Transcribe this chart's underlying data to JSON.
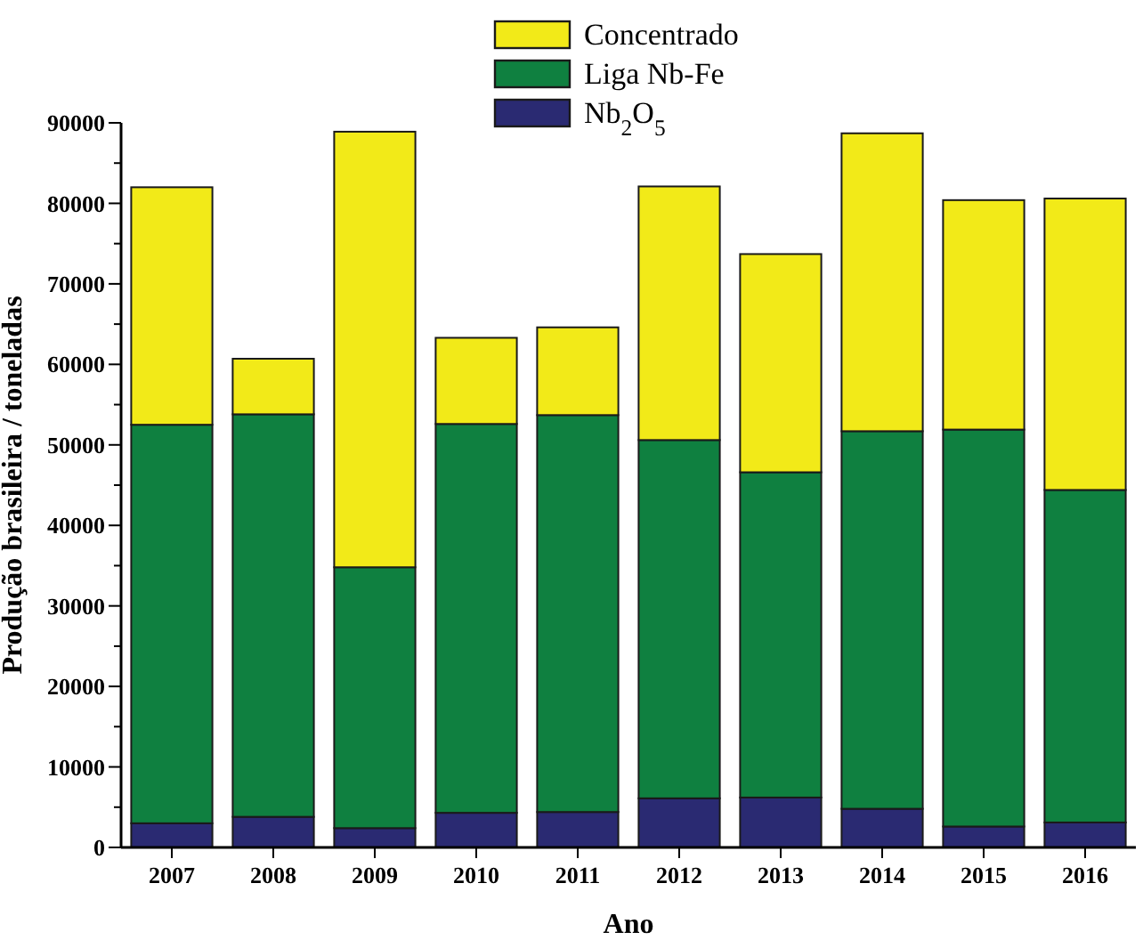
{
  "chart_data": {
    "type": "bar",
    "stacked": true,
    "xlabel": "Ano",
    "ylabel": "Produção brasileira / toneladas",
    "categories": [
      "2007",
      "2008",
      "2009",
      "2010",
      "2011",
      "2012",
      "2013",
      "2014",
      "2015",
      "2016"
    ],
    "series": [
      {
        "name": "Nb$_{2}$O$_{5}$",
        "color": "#2a2a72",
        "values": [
          3000,
          3800,
          2400,
          4300,
          4400,
          6100,
          6200,
          4800,
          2600,
          3100
        ]
      },
      {
        "name": "Liga Nb-Fe",
        "color": "#0f8040",
        "values": [
          49500,
          50000,
          32400,
          48300,
          49300,
          44500,
          40400,
          46900,
          49300,
          41300
        ]
      },
      {
        "name": "Concentrado",
        "color": "#f2ea18",
        "values": [
          29500,
          6900,
          54100,
          10700,
          10900,
          31500,
          27100,
          37000,
          28500,
          36200
        ]
      }
    ],
    "ylim": [
      0,
      90000
    ],
    "yticks": [
      0,
      {
        "value": 5000,
        "label": null
      },
      10000,
      {
        "value": 15000,
        "label": null
      },
      20000,
      {
        "value": 25000,
        "label": null
      },
      30000,
      {
        "value": 35000,
        "label": null
      },
      40000,
      {
        "value": 45000,
        "label": null
      },
      50000,
      {
        "value": 55000,
        "label": null
      },
      60000,
      {
        "value": 65000,
        "label": null
      },
      70000,
      {
        "value": 75000,
        "label": null
      },
      80000,
      {
        "value": 85000,
        "label": null
      },
      90000
    ],
    "legend": "top",
    "grid": false
  }
}
